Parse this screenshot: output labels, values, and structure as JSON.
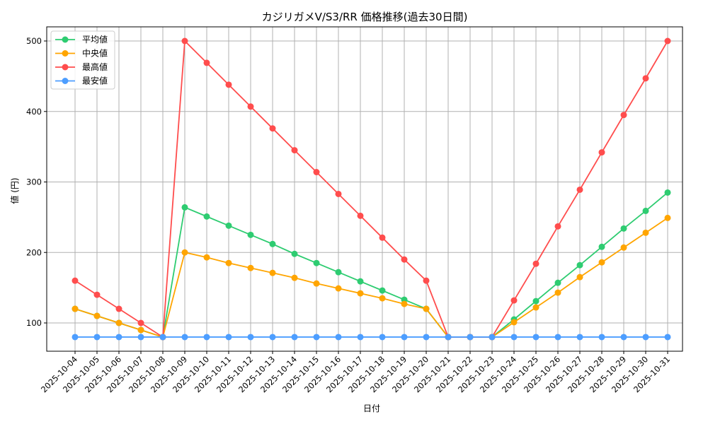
{
  "chart_data": {
    "type": "line",
    "title": "カジリガメV/S3/RR 価格推移(過去30日間)",
    "xlabel": "日付",
    "ylabel": "値 (円)",
    "ylim": [
      60,
      520
    ],
    "yticks": [
      100,
      200,
      300,
      400,
      500
    ],
    "grid": true,
    "legend_position": "upper left",
    "categories": [
      "2025-10-04",
      "2025-10-05",
      "2025-10-06",
      "2025-10-07",
      "2025-10-08",
      "2025-10-09",
      "2025-10-10",
      "2025-10-11",
      "2025-10-12",
      "2025-10-13",
      "2025-10-14",
      "2025-10-15",
      "2025-10-16",
      "2025-10-17",
      "2025-10-18",
      "2025-10-19",
      "2025-10-20",
      "2025-10-21",
      "2025-10-22",
      "2025-10-23",
      "2025-10-24",
      "2025-10-25",
      "2025-10-26",
      "2025-10-27",
      "2025-10-28",
      "2025-10-29",
      "2025-10-30",
      "2025-10-31"
    ],
    "series": [
      {
        "name": "平均値",
        "color": "#2ecc71",
        "values": [
          120,
          110,
          100,
          90,
          80,
          264,
          251,
          238,
          225,
          212,
          198,
          185,
          172,
          159,
          146,
          133,
          120,
          80,
          80,
          80,
          105,
          131,
          157,
          182,
          208,
          234,
          259,
          285
        ]
      },
      {
        "name": "中央値",
        "color": "#ffa500",
        "values": [
          120,
          110,
          100,
          90,
          80,
          200,
          193,
          185,
          178,
          171,
          164,
          156,
          149,
          142,
          135,
          127,
          120,
          80,
          80,
          80,
          101,
          122,
          143,
          165,
          186,
          207,
          228,
          249
        ]
      },
      {
        "name": "最高値",
        "color": "#ff4d4d",
        "values": [
          160,
          140,
          120,
          100,
          80,
          500,
          469,
          438,
          407,
          376,
          345,
          314,
          283,
          252,
          221,
          190,
          160,
          80,
          80,
          80,
          132,
          184,
          237,
          289,
          342,
          395,
          447,
          500
        ]
      },
      {
        "name": "最安値",
        "color": "#4d9eff",
        "values": [
          80,
          80,
          80,
          80,
          80,
          80,
          80,
          80,
          80,
          80,
          80,
          80,
          80,
          80,
          80,
          80,
          80,
          80,
          80,
          80,
          80,
          80,
          80,
          80,
          80,
          80,
          80,
          80
        ]
      }
    ]
  }
}
